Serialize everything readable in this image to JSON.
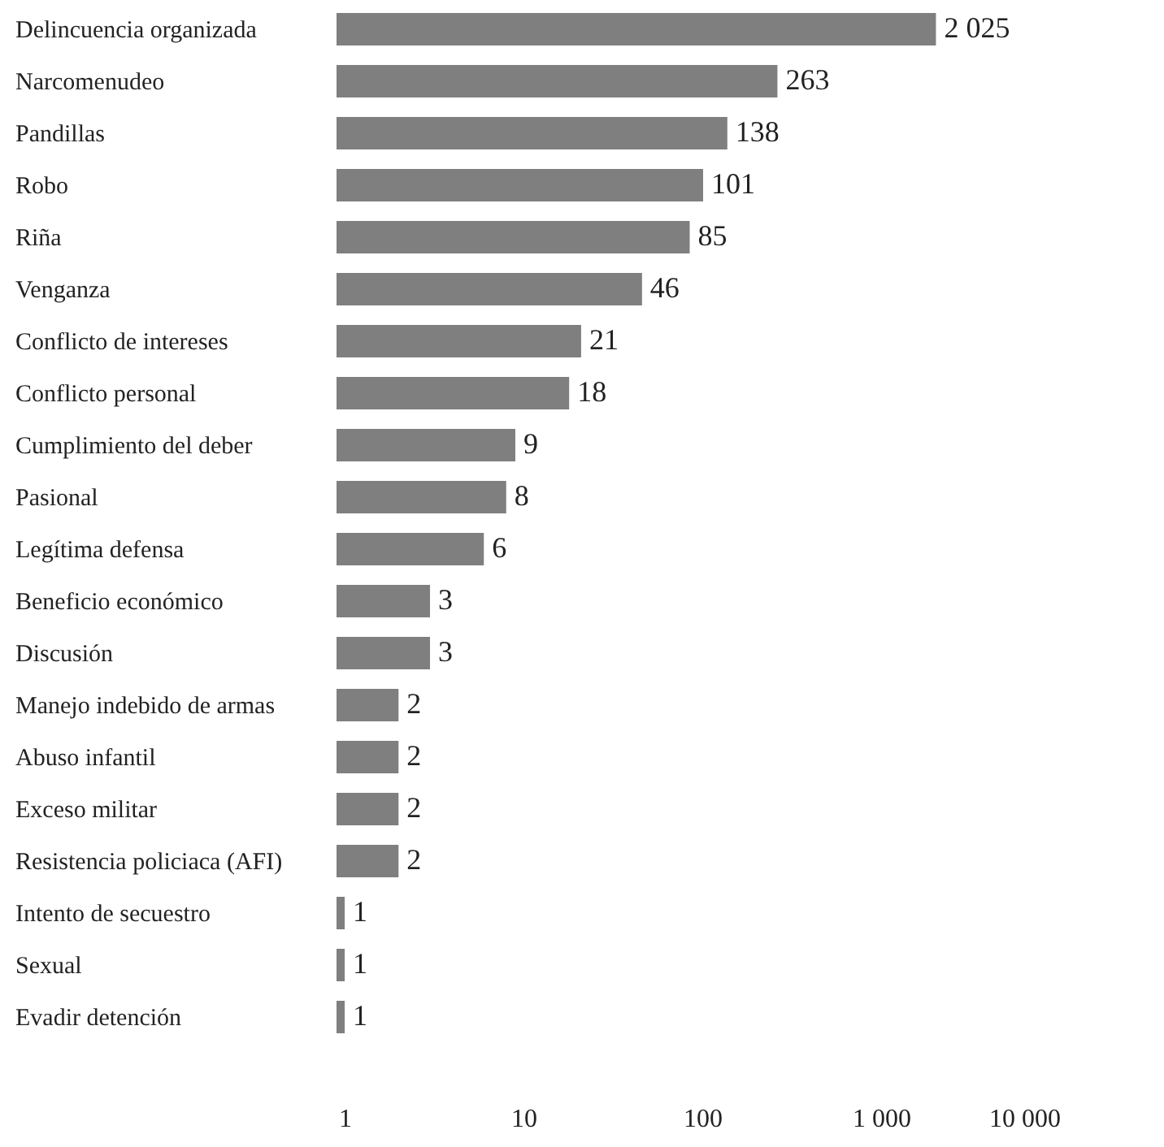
{
  "chart_data": {
    "type": "bar",
    "orientation": "horizontal",
    "log": "x",
    "grid": false,
    "categories": [
      "Delincuencia organizada",
      "Narcomenudeo",
      "Pandillas",
      "Robo",
      "Riña",
      "Venganza",
      "Conflicto de intereses",
      "Conflicto personal",
      "Cumplimiento del deber",
      "Pasional",
      "Legítima defensa",
      "Beneficio económico",
      "Discusión",
      "Manejo indebido de armas",
      "Abuso infantil",
      "Exceso militar",
      "Resistencia policiaca (AFI)",
      "Intento de secuestro",
      "Sexual",
      "Evadir detención"
    ],
    "values": [
      2025,
      263,
      138,
      101,
      85,
      46,
      21,
      18,
      9,
      8,
      6,
      3,
      3,
      2,
      2,
      2,
      2,
      1,
      1,
      1
    ],
    "value_labels": [
      "2 025",
      "263",
      "138",
      "101",
      "85",
      "46",
      "21",
      "18",
      "9",
      "8",
      "6",
      "3",
      "3",
      "2",
      "2",
      "2",
      "2",
      "1",
      "1",
      "1"
    ],
    "color": "#7f7f7f",
    "xlim": [
      0.9,
      10000
    ],
    "xticks": [
      1,
      10,
      100,
      {
        "value": 1000,
        "label": "1 000"
      },
      {
        "value": 10000,
        "label": "10 000"
      }
    ]
  }
}
